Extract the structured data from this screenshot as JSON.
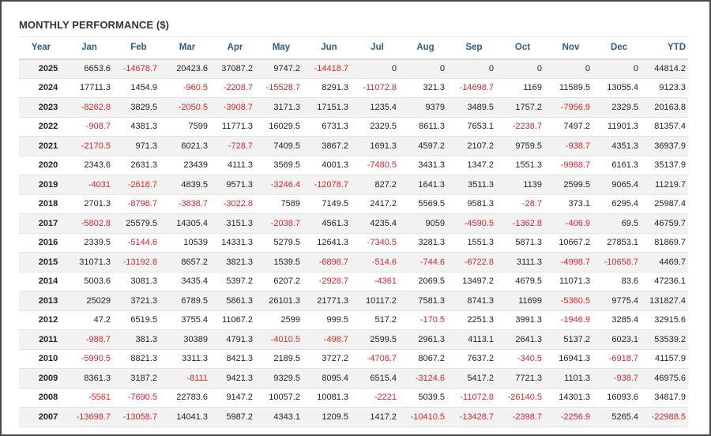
{
  "title": "MONTHLY PERFORMANCE ($)",
  "colors": {
    "negative": "#e0262b",
    "header_text": "#2b5e8c",
    "stripe": "#f2f2f2"
  },
  "columns": [
    "Year",
    "Jan",
    "Feb",
    "Mar",
    "Apr",
    "May",
    "Jun",
    "Jul",
    "Aug",
    "Sep",
    "Oct",
    "Nov",
    "Dec",
    "YTD"
  ],
  "rows": [
    [
      "2025",
      "6653.6",
      "-14678.7",
      "20423.6",
      "37087.2",
      "9747.2",
      "-14418.7",
      "0",
      "0",
      "0",
      "0",
      "0",
      "0",
      "44814.2"
    ],
    [
      "2024",
      "17711.3",
      "1454.9",
      "-960.5",
      "-2208.7",
      "-15528.7",
      "8291.3",
      "-11072.8",
      "321.3",
      "-14698.7",
      "1169",
      "11589.5",
      "13055.4",
      "9123.3"
    ],
    [
      "2023",
      "-8262.8",
      "3829.5",
      "-2050.5",
      "-3908.7",
      "3171.3",
      "17151.3",
      "1235.4",
      "9379",
      "3489.5",
      "1757.2",
      "-7956.9",
      "2329.5",
      "20163.8"
    ],
    [
      "2022",
      "-908.7",
      "4381.3",
      "7599",
      "11771.3",
      "16029.5",
      "6731.3",
      "2329.5",
      "8611.3",
      "7653.1",
      "-2238.7",
      "7497.2",
      "11901.3",
      "81357.4"
    ],
    [
      "2021",
      "-2170.5",
      "971.3",
      "6021.3",
      "-728.7",
      "7409.5",
      "3867.2",
      "1691.3",
      "4597.2",
      "2107.2",
      "9759.5",
      "-938.7",
      "4351.3",
      "36937.9"
    ],
    [
      "2020",
      "2343.6",
      "2631.3",
      "23439",
      "4111.3",
      "3569.5",
      "4001.3",
      "-7480.5",
      "3431.3",
      "1347.2",
      "1551.3",
      "-9968.7",
      "6161.3",
      "35137.9"
    ],
    [
      "2019",
      "-4031",
      "-2618.7",
      "4839.5",
      "9571.3",
      "-3246.4",
      "-12078.7",
      "827.2",
      "1641.3",
      "3511.3",
      "1139",
      "2599.5",
      "9065.4",
      "11219.7"
    ],
    [
      "2018",
      "2701.3",
      "-8798.7",
      "-3838.7",
      "-3022.8",
      "7589",
      "7149.5",
      "2417.2",
      "5569.5",
      "9581.3",
      "-28.7",
      "373.1",
      "6295.4",
      "25987.4"
    ],
    [
      "2017",
      "-5802.8",
      "25579.5",
      "14305.4",
      "3151.3",
      "-2038.7",
      "4561.3",
      "4235.4",
      "9059",
      "-4590.5",
      "-1362.8",
      "-406.9",
      "69.5",
      "46759.7"
    ],
    [
      "2016",
      "2339.5",
      "-5144.6",
      "10539",
      "14331.3",
      "5279.5",
      "12641.3",
      "-7340.5",
      "3281.3",
      "1551.3",
      "5871.3",
      "10667.2",
      "27853.1",
      "81869.7"
    ],
    [
      "2015",
      "31071.3",
      "-13192.8",
      "8657.2",
      "3821.3",
      "1539.5",
      "-6898.7",
      "-514.6",
      "-744.6",
      "-6722.8",
      "3111.3",
      "-4998.7",
      "-10658.7",
      "4469.7"
    ],
    [
      "2014",
      "5003.6",
      "3081.3",
      "3435.4",
      "5397.2",
      "6207.2",
      "-2928.7",
      "-4361",
      "2069.5",
      "13497.2",
      "4679.5",
      "11071.3",
      "83.6",
      "47236.1"
    ],
    [
      "2013",
      "25029",
      "3721.3",
      "6789.5",
      "5861.3",
      "26101.3",
      "21771.3",
      "10117.2",
      "7581.3",
      "8741.3",
      "11699",
      "-5360.5",
      "9775.4",
      "131827.4"
    ],
    [
      "2012",
      "47.2",
      "6519.5",
      "3755.4",
      "11067.2",
      "2599",
      "999.5",
      "517.2",
      "-170.5",
      "2251.3",
      "3991.3",
      "-1946.9",
      "3285.4",
      "32915.6"
    ],
    [
      "2011",
      "-988.7",
      "381.3",
      "30389",
      "4791.3",
      "-4010.5",
      "-498.7",
      "2599.5",
      "2961.3",
      "4113.1",
      "2641.3",
      "5137.2",
      "6023.1",
      "53539.2"
    ],
    [
      "2010",
      "-5990.5",
      "8821.3",
      "3311.3",
      "8421.3",
      "2189.5",
      "3727.2",
      "-4708.7",
      "8067.2",
      "7637.2",
      "-340.5",
      "16941.3",
      "-6918.7",
      "41157.9"
    ],
    [
      "2009",
      "8361.3",
      "3187.2",
      "-8111",
      "9421.3",
      "9329.5",
      "8095.4",
      "6515.4",
      "-3124.6",
      "5417.2",
      "7721.3",
      "1101.3",
      "-938.7",
      "46975.6"
    ],
    [
      "2008",
      "-5561",
      "-7690.5",
      "22783.6",
      "9147.2",
      "10057.2",
      "10081.3",
      "-2221",
      "5039.5",
      "-11072.8",
      "-26140.5",
      "14301.3",
      "16093.6",
      "34817.9"
    ],
    [
      "2007",
      "-13698.7",
      "-13058.7",
      "14041.3",
      "5987.2",
      "4343.1",
      "1209.5",
      "1417.2",
      "-10410.5",
      "-13428.7",
      "-2398.7",
      "-2256.9",
      "5265.4",
      "-22988.5"
    ]
  ]
}
